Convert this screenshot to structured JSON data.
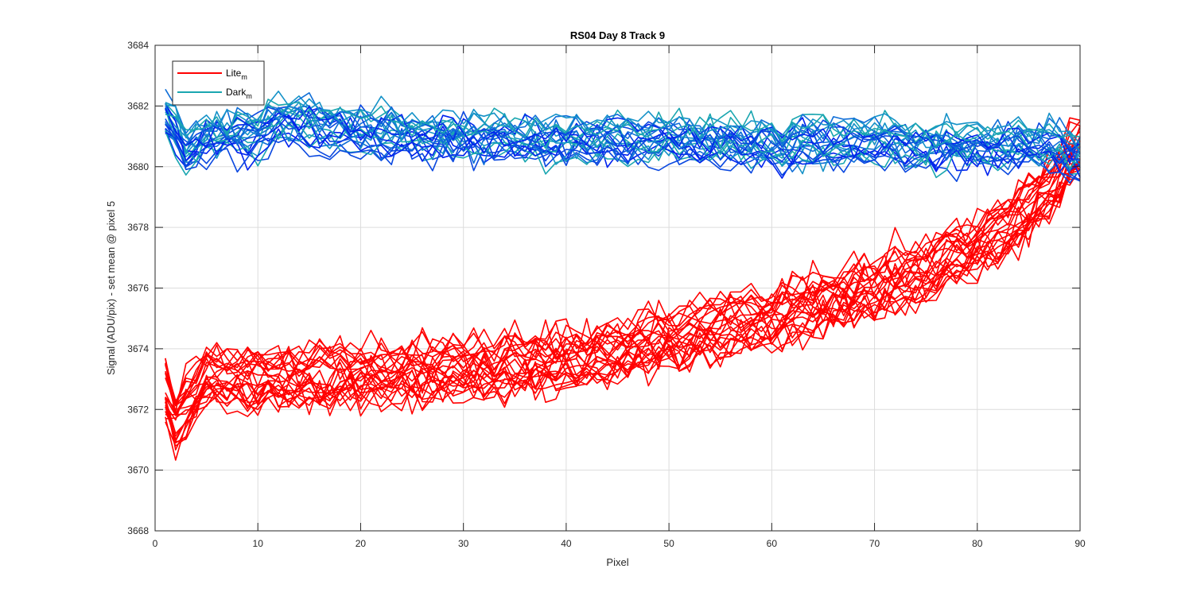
{
  "chart_data": {
    "type": "line",
    "title": "RS04 Day 8 Track 9",
    "xlabel": "Pixel",
    "ylabel": "Signal (ADU/pix) - set mean @ pixel 5",
    "xlim": [
      0,
      90
    ],
    "ylim": [
      3668,
      3684
    ],
    "xticks": [
      0,
      10,
      20,
      30,
      40,
      50,
      60,
      70,
      80,
      90
    ],
    "yticks": [
      3668,
      3670,
      3672,
      3674,
      3676,
      3678,
      3680,
      3682,
      3684
    ],
    "grid": true,
    "legend_position": "top-left",
    "legend": [
      {
        "name": "Lite",
        "subscript": "m",
        "color": "#ff0000"
      },
      {
        "name": "Dark",
        "subscript": "m",
        "color": "#1aa6b0"
      }
    ],
    "series_groups": [
      {
        "name": "Lite",
        "count": 25,
        "colors": [
          "#ff0000"
        ],
        "x_range": [
          1,
          90
        ],
        "trend": [
          [
            1,
            3672.6
          ],
          [
            2,
            3671.6
          ],
          [
            3,
            3672.0
          ],
          [
            5,
            3673.1
          ],
          [
            10,
            3673.0
          ],
          [
            20,
            3673.1
          ],
          [
            30,
            3673.3
          ],
          [
            40,
            3673.6
          ],
          [
            50,
            3674.3
          ],
          [
            60,
            3675.0
          ],
          [
            70,
            3676.0
          ],
          [
            75,
            3676.6
          ],
          [
            80,
            3677.4
          ],
          [
            85,
            3678.5
          ],
          [
            88,
            3679.6
          ],
          [
            90,
            3680.6
          ]
        ],
        "spread": 0.75,
        "noise": 0.55
      },
      {
        "name": "Dark",
        "count": 25,
        "colors": [
          "#0022ee",
          "#0a48e0",
          "#0f6ed8",
          "#1592c8",
          "#1aa6b0"
        ],
        "x_range": [
          1,
          90
        ],
        "trend": [
          [
            1,
            3681.7
          ],
          [
            3,
            3680.6
          ],
          [
            5,
            3681.0
          ],
          [
            10,
            3681.1
          ],
          [
            12,
            3681.6
          ],
          [
            20,
            3681.2
          ],
          [
            30,
            3681.0
          ],
          [
            40,
            3680.9
          ],
          [
            50,
            3680.9
          ],
          [
            60,
            3680.8
          ],
          [
            70,
            3680.8
          ],
          [
            80,
            3680.7
          ],
          [
            88,
            3680.7
          ],
          [
            90,
            3680.3
          ]
        ],
        "spread": 0.55,
        "noise": 0.45
      }
    ]
  }
}
